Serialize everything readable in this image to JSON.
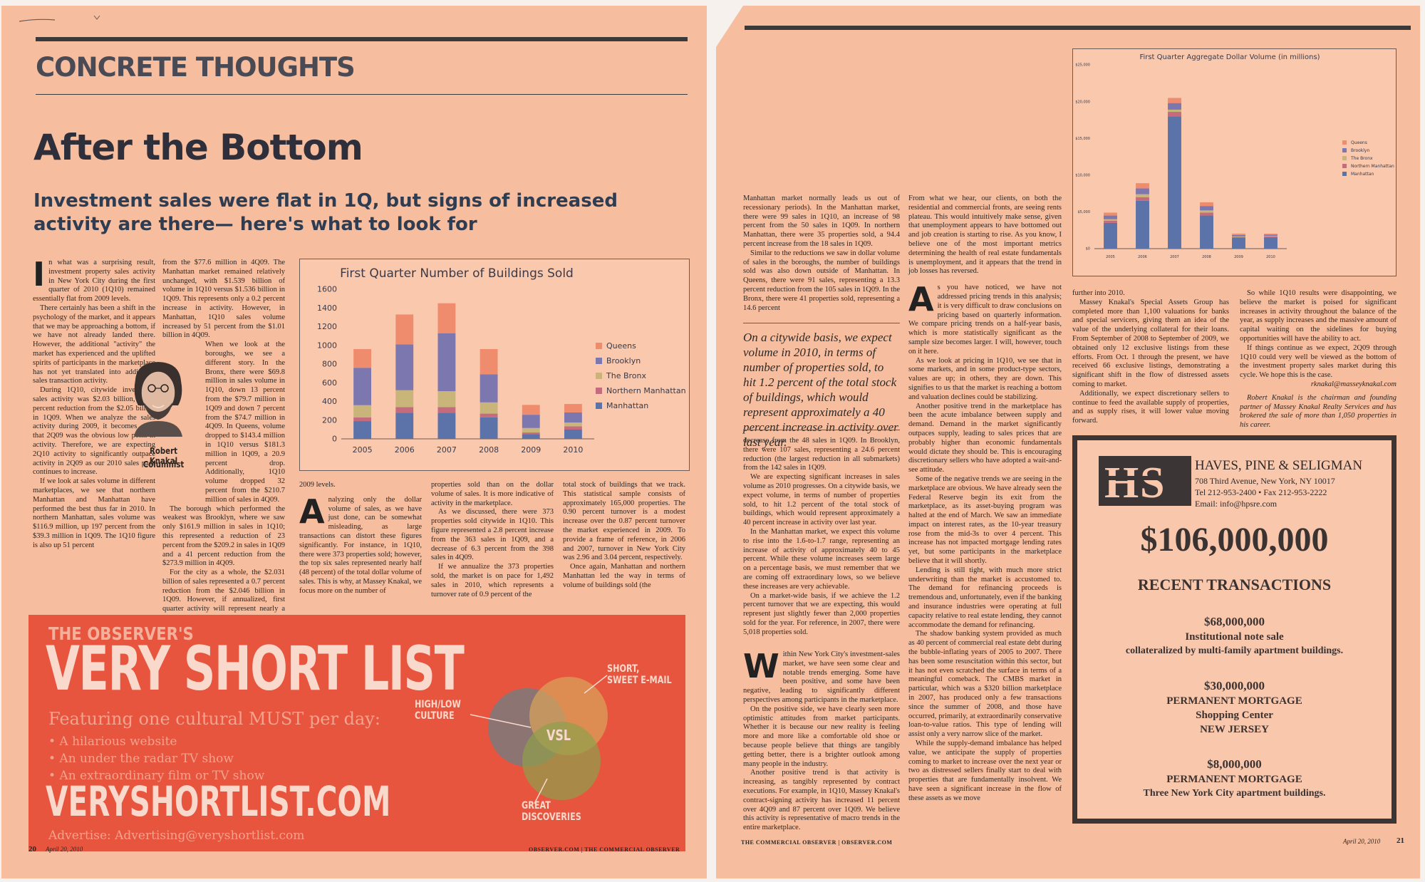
{
  "left": {
    "section_head": "CONCRETE THOUGHTS",
    "headline": "After the Bottom",
    "deck": "Investment sales were flat in 1Q, but signs of increased activity are there— here's what to look for",
    "columnist_name": "Robert Knakal",
    "columnist_role": "Columnist",
    "col1": {
      "dropcap": "I",
      "lead": "n what was a surprising result, investment property sales activity in New York City during the first quarter of 2010 (1Q10) remained essentially flat from 2009 levels.",
      "p2": "There certainly has been a shift in the psychology of the market, and it appears that we may be approaching a bottom, if we have not already landed there. However, the additional \"activity\" the market has experienced and the uplifted spirits of participants in the marketplace has not yet translated into additional sales transaction activity.",
      "p3": "During 1Q10, citywide investment sales activity was $2.03 billion, a 0.7 percent reduction from the $2.05 billion in 1Q09. When we analyze the sales activity during 2009, it becomes clear that 2Q09 was the obvious low point in activity. Therefore, we are expecting 2Q10 activity to significantly outpace activity in 2Q09 as our 2010 sales pace continues to increase.",
      "p4": "If we look at sales volume in different marketplaces, we see that northern Manhattan and Manhattan have performed the best thus far in 2010. In northern Manhattan, sales volume was $116.9 million, up 197 percent from the $39.3 million in 1Q09. The 1Q10 figure is also up 51 percent"
    },
    "col2": {
      "p1": "from the $77.6 million in 4Q09. The Manhattan market remained relatively unchanged, with $1.539 billion of volume in 1Q10 versus $1.536 billion in 1Q09. This represents only a 0.2 percent increase in activity. However, in Manhattan, 1Q10 sales volume increased by 51 percent from the $1.01 billion in 4Q09.",
      "p2": "When we look at the boroughs, we see a different story. In the Bronx, there were $69.8 million in sales volume in 1Q10, down 13 percent from the $79.7 million in 1Q09 and down 7 percent from the $74.7 million in 4Q09. In Queens, volume dropped to $143.4 million in 1Q10 versus $181.3 million in 1Q09, a 20.9 percent drop. Additionally, 1Q10 volume dropped 32 percent from the $210.7 million of sales in 4Q09.",
      "p3": "The borough which performed the weakest was Brooklyn, where we saw only $161.9 million in sales in 1Q10; this represented a reduction of 23 percent from the $209.2 in sales in 1Q09 and a 41 percent reduction from the $273.9 million in 4Q09.",
      "p4": "For the city as a whole, the $2.031 billion of sales represented a 0.7 percent reduction from the $2.046 billion in 1Q09. However, if annualized, first quarter activity will represent nearly a 30 percent increase over"
    },
    "col3": {
      "p1": "2009 levels.",
      "dropcap": "A",
      "p2": "nalyzing only the dollar volume of sales, as we have just done, can be somewhat misleading, as large transactions can distort these figures significantly. For instance, in 1Q10, there were 373 properties sold; however, the top six sales represented nearly half (48 percent) of the total dollar volume of sales. This is why, at Massey Knakal, we focus more on the number of"
    },
    "col4": {
      "p1": "properties sold than on the dollar volume of sales. It is more indicative of activity in the marketplace.",
      "p2": "As we discussed, there were 373 properties sold citywide in 1Q10. This figure represented a 2.8 percent increase from the 363 sales in 1Q09, and a decrease of 6.3 percent from the 398 sales in 4Q09.",
      "p3": "If we annualize the 373 properties sold, the market is on pace for 1,492 sales in 2010, which represents a turnover rate of 0.9 percent of the"
    },
    "col5": {
      "p1": "total stock of buildings that we track. This statistical sample consists of approximately 165,000 properties. The 0.90 percent turnover is a modest increase over the 0.87 percent turnover the market experienced in 2009. To provide a frame of reference, in 2006 and 2007, turnover in New York City was 2.96 and 3.04 percent, respectively.",
      "p2": "Once again, Manhattan and northern Manhattan led the way in terms of volume of buildings sold (the"
    },
    "footer_page": "20",
    "footer_date": "April 20, 2010",
    "footer_right": "OBSERVER.COM | THE COMMERCIAL OBSERVER"
  },
  "vsl_ad": {
    "top": "THE OBSERVER'S",
    "big": "VERY SHORT LIST",
    "feature": "Featuring one cultural MUST per day:",
    "bullets": [
      "• A hilarious website",
      "• An under the radar TV show",
      "• An extraordinary film or TV show"
    ],
    "url": "VERYSHORTLIST.COM",
    "advertise": "Advertise: Advertising@veryshortlist.com",
    "label_highlow": "HIGH/LOW\nCULTURE",
    "label_short": "SHORT,\nSWEET E-MAIL",
    "label_great": "GREAT\nDISCOVERIES",
    "label_vsl": "VSL"
  },
  "right": {
    "col1": {
      "p1": "Manhattan market normally leads us out of recessionary periods). In the Manhattan market, there were 99 sales in 1Q10, an increase of 98 percent from the 50 sales in 1Q09. In northern Manhattan, there were 35 properties sold, a 94.4 percent increase from the 18 sales in 1Q09.",
      "p2": "Similar to the reductions we saw in dollar volume of sales in the boroughs, the number of buildings sold was also down outside of Manhattan. In Queens, there were 91 sales, representing a 13.3 percent reduction from the 105 sales in 1Q09. In the Bronx, there were 41 properties sold, representing a 14.6 percent",
      "p3": "decrease from the 48 sales in 1Q09. In Brooklyn, there were 107 sales, representing a 24.6 percent reduction (the largest reduction in all submarkets) from the 142 sales in 1Q09.",
      "p4": "We are expecting significant increases in sales volume as 2010 progresses. On a citywide basis, we expect volume, in terms of number of properties sold, to hit 1.2 percent of the total stock of buildings, which would represent approximately a 40 percent increase in activity over last year.",
      "p5": "In the Manhattan market, we expect this volume to rise into the 1.6-to-1.7 range, representing an increase of activity of approximately 40 to 45 percent. While these volume increases seem large on a percentage basis, we must remember that we are coming off extraordinary lows, so we believe these increases are very achievable.",
      "p6": "On a market-wide basis, if we achieve the 1.2 percent turnover that we are expecting, this would represent just slightly fewer than 2,000 properties sold for the year. For reference, in 2007, there were 5,018 properties sold."
    },
    "pull_quote": "On a citywide basis, we expect volume in 2010, in terms of number of properties sold, to hit 1.2 percent of the total stock of buildings, which would represent approximately a 40 percent increase in activity over last year.",
    "col2": {
      "p1": "From what we hear, our clients, on both the residential and commercial fronts, are seeing rents plateau. This would intuitively make sense, given that unemployment appears to have bottomed out and job creation is starting to rise. As you know, I believe one of the most important metrics determining the health of real estate fundamentals is unemployment, and it appears that the trend in job losses has reversed.",
      "dropcap": "A",
      "p2": "s you have noticed, we have not addressed pricing trends in this analysis; it is very difficult to draw conclusions on pricing based on quarterly information. We compare pricing trends on a half-year basis, which is more statistically significant as the sample size becomes larger. I will, however, touch on it here.",
      "p3": "As we look at pricing in 1Q10, we see that in some markets, and in some product-type sectors, values are up; in others, they are down. This signifies to us that the market is reaching a bottom and valuation declines could be stabilizing.",
      "p4": "Another positive trend in the marketplace has been the acute imbalance between supply and demand. Demand in the market significantly outpaces supply, leading to sales prices that are probably higher than economic fundamentals would dictate they should be. This is encouraging discretionary sellers who have adopted a wait-and-see attitude.",
      "p5": "Some of the negative trends we are seeing in the marketplace are obvious. We have already seen the Federal Reserve begin its exit from the marketplace, as its asset-buying program was halted at the end of March. We saw an immediate impact on interest rates, as the 10-year treasury rose from the mid-3s to over 4 percent. This increase has not impacted mortgage lending rates yet, but some participants in the marketplace believe that it will shortly.",
      "p6": "Lending is still tight, with much more strict underwriting than the market is accustomed to. The demand for refinancing proceeds is tremendous and, unfortunately, even if the banking and insurance industries were operating at full capacity relative to real estate lending, they cannot accommodate the demand for refinancing.",
      "p7": "The shadow banking system provided as much as 40 percent of commercial real estate debt during the bubble-inflating years of 2005 to 2007. There has been some resuscitation within this sector, but it has not even scratched the surface in terms of a meaningful comeback. The CMBS market in particular, which was a $320 billion marketplace in 2007, has produced only a few transactions since the summer of 2008, and those have occurred, primarily, at extraordinarily conservative loan-to-value ratios. This type of lending will assist only a very narrow slice of the market.",
      "p8": "While the supply-demand imbalance has helped value, we anticipate the supply of properties coming to market to increase over the next year or two as distressed sellers finally start to deal with properties that are fundamentally insolvent. We have seen a significant increase in the flow of these assets as we move"
    },
    "col1b": {
      "dropcap": "W",
      "p1": "ithin New York City's investment-sales market, we have seen some clear and notable trends emerging. Some have been positive, and some have been negative, leading to significantly different perspectives among participants in the marketplace.",
      "p2": "On the positive side, we have clearly seen more optimistic attitudes from market participants. Whether it is because our new reality is feeling more and more like a comfortable old shoe or because people believe that things are tangibly getting better, there is a brighter outlook among many people in the industry.",
      "p3": "Another positive trend is that activity is increasing, as tangibly represented by contract executions. For example, in 1Q10, Massey Knakal's contract-signing activity has increased 11 percent over 4Q09 and 87 percent over 1Q09. We believe this activity is representative of macro trends in the entire marketplace."
    },
    "col3": {
      "p1": "further into 2010.",
      "p2": "Massey Knakal's Special Assets Group has completed more than 1,100 valuations for banks and special servicers, giving them an idea of the value of the underlying collateral for their loans. From September of 2008 to September of 2009, we obtained only 12 exclusive listings from these efforts. From Oct. 1 through the present, we have received 66 exclusive listings, demonstrating a significant shift in the flow of distressed assets coming to market.",
      "p3": "Additionally, we expect discretionary sellers to continue to feed the available supply of properties, and as supply rises, it will lower value moving forward."
    },
    "col4": {
      "p1": "So while 1Q10 results were disappointing, we believe the market is poised for significant increases in activity throughout the balance of the year, as supply increases and the massive amount of capital waiting on the sidelines for buying opportunities will have the ability to act.",
      "p2": "If things continue as we expect, 2Q09 through 1Q10 could very well be viewed as the bottom of the investment property sales market during this cycle. We hope this is the case.",
      "email": "rknakal@masseyknakal.com",
      "bio": "Robert Knakal is the chairman and founding partner of Massey Knakal Realty Services and has brokered the sale of more than 1,050 properties in his career."
    },
    "hps_ad": {
      "name": "HAVES, PINE & SELIGMAN",
      "address": "708 Third Avenue, New York, NY 10017",
      "tel": "Tel 212-953-2400 • Fax 212-953-2222",
      "email": "Email: info@hpsre.com",
      "total": "$106,000,000",
      "heading": "RECENT TRANSACTIONS",
      "t1_amount": "$68,000,000",
      "t1_l1": "Institutional note sale",
      "t1_l2": "collateralized by multi-family apartment buildings.",
      "t2_amount": "$30,000,000",
      "t2_l1": "PERMANENT MORTGAGE",
      "t2_l2": "Shopping Center",
      "t2_l3": "NEW JERSEY",
      "t3_amount": "$8,000,000",
      "t3_l1": "PERMANENT MORTGAGE",
      "t3_l2": "Three New York City apartment buildings."
    },
    "footer_left": "THE COMMERCIAL OBSERVER | OBSERVER.COM",
    "footer_date": "April 20, 2010",
    "footer_page": "21"
  },
  "colors": {
    "page": "#f6bd9e",
    "queens": "#f08c6e",
    "brooklyn": "#7d77b0",
    "bronx": "#c9b57a",
    "northern_manhattan": "#c56b7e",
    "manhattan": "#5b73a8",
    "ad_red": "#e8553f"
  },
  "chart_data": [
    {
      "type": "bar",
      "stacked": true,
      "title": "First Quarter Number of Buildings Sold",
      "categories": [
        "2005",
        "2006",
        "2007",
        "2008",
        "2009",
        "2010"
      ],
      "ylim": [
        0,
        1600
      ],
      "yticks": [
        "0",
        "200",
        "400",
        "600",
        "800",
        "1000",
        "1200",
        "1400",
        "1600"
      ],
      "legend_position": "right",
      "series": [
        {
          "name": "Manhattan",
          "color": "#5b73a8",
          "values": [
            190,
            280,
            280,
            230,
            50,
            99
          ]
        },
        {
          "name": "Northern Manhattan",
          "color": "#c56b7e",
          "values": [
            40,
            60,
            60,
            40,
            18,
            35
          ]
        },
        {
          "name": "The Bronx",
          "color": "#c9b57a",
          "values": [
            130,
            180,
            170,
            120,
            48,
            41
          ]
        },
        {
          "name": "Brooklyn",
          "color": "#7d77b0",
          "values": [
            400,
            490,
            620,
            300,
            142,
            107
          ]
        },
        {
          "name": "Queens",
          "color": "#f08c6e",
          "values": [
            200,
            320,
            320,
            270,
            105,
            91
          ]
        }
      ]
    },
    {
      "type": "bar",
      "stacked": true,
      "title": "First Quarter Aggregate Dollar Volume (in millions)",
      "categories": [
        "2005",
        "2006",
        "2007",
        "2008",
        "2009",
        "2010"
      ],
      "ylim": [
        0,
        25000
      ],
      "yticks": [
        "$0",
        "$5,000",
        "$10,000",
        "$15,000",
        "$20,000",
        "$25,000"
      ],
      "legend_position": "right",
      "series": [
        {
          "name": "Manhattan",
          "color": "#5b73a8",
          "values": [
            3500,
            6500,
            18000,
            4500,
            1536,
            1539
          ]
        },
        {
          "name": "Northern Manhattan",
          "color": "#c56b7e",
          "values": [
            300,
            500,
            600,
            400,
            39,
            117
          ]
        },
        {
          "name": "The Bronx",
          "color": "#c9b57a",
          "values": [
            200,
            400,
            300,
            300,
            80,
            70
          ]
        },
        {
          "name": "Brooklyn",
          "color": "#7d77b0",
          "values": [
            500,
            800,
            900,
            600,
            209,
            162
          ]
        },
        {
          "name": "Queens",
          "color": "#f08c6e",
          "values": [
            400,
            700,
            700,
            500,
            181,
            143
          ]
        }
      ],
      "legend_order": [
        "Queens",
        "Brooklyn",
        "The Bronx",
        "Northern Manhattan",
        "Manhattan"
      ]
    }
  ]
}
